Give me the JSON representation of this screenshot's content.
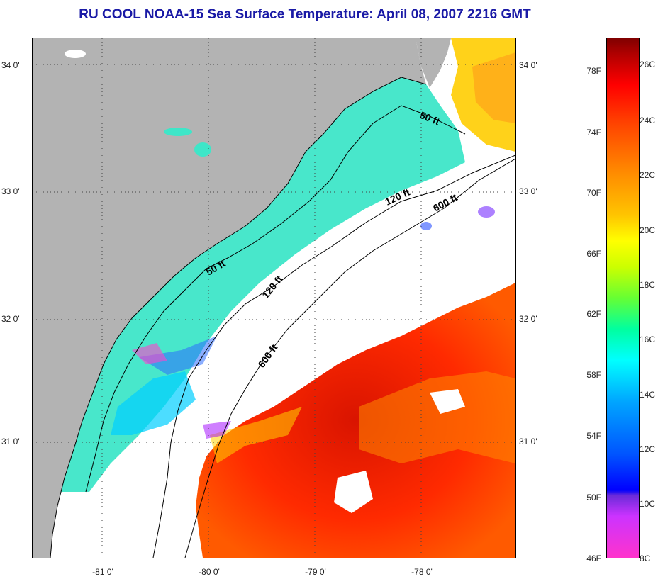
{
  "title": "RU COOL  NOAA-15  Sea Surface Temperature:  April 08, 2007 2216 GMT",
  "lat_labels": [
    "34 0'",
    "33 0'",
    "32 0'",
    "31 0'"
  ],
  "lon_labels": [
    "-81 0'",
    "-80 0'",
    "-79 0'",
    "-78 0'"
  ],
  "contour_labels": [
    "50 ft",
    "120 ft",
    "600 ft",
    "50 ft",
    "120 ft",
    "600 ft"
  ],
  "colorbar": {
    "fahrenheit": [
      "78F",
      "74F",
      "70F",
      "66F",
      "62F",
      "58F",
      "54F",
      "50F",
      "46F"
    ],
    "celsius": [
      "26C",
      "24C",
      "22C",
      "20C",
      "18C",
      "16C",
      "14C",
      "12C",
      "10C",
      "8C"
    ]
  },
  "colors": {
    "title": "#1a1aa6",
    "land": "#b3b3b3",
    "cloud": "#ffffff",
    "shelf_water": "#40e0d0",
    "gulf_stream": "#ff2a00"
  }
}
